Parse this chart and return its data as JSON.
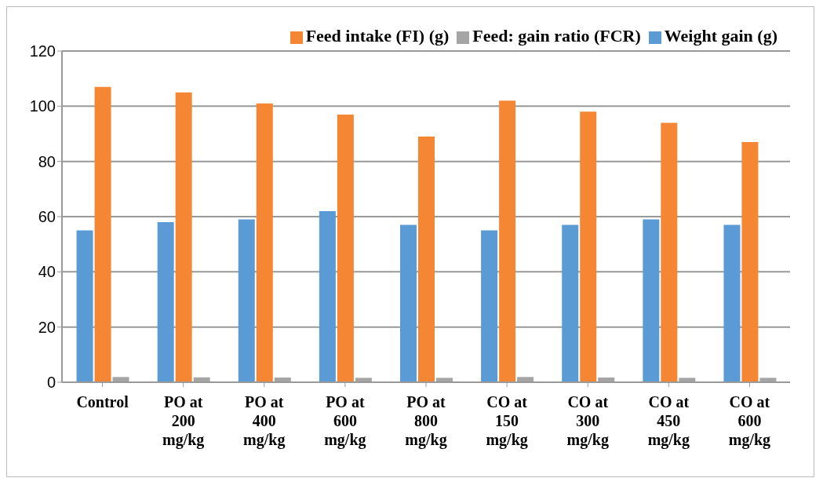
{
  "chart_data": {
    "type": "bar",
    "categories": [
      "Control",
      "PO at 200 mg/kg",
      "PO at 400 mg/kg",
      "PO at 600 mg/kg",
      "PO at 800 mg/kg",
      "CO at 150 mg/kg",
      "CO at 300 mg/kg",
      "CO at 450 mg/kg",
      "CO at 600 mg/kg"
    ],
    "series": [
      {
        "name": "Weight gain  (g)",
        "color": "#5b9bd5",
        "values": [
          55,
          58,
          59,
          62,
          57,
          55,
          57,
          59,
          57
        ]
      },
      {
        "name": "Feed intake (FI) (g)",
        "color": "#f58634",
        "values": [
          107,
          105,
          101,
          97,
          89,
          102,
          98,
          94,
          87
        ]
      },
      {
        "name": "Feed: gain ratio (FCR)",
        "color": "#a5a5a5",
        "values": [
          1.9,
          1.8,
          1.7,
          1.6,
          1.6,
          1.9,
          1.7,
          1.6,
          1.6
        ]
      }
    ],
    "ylim": [
      0,
      120
    ],
    "yticks": [
      0,
      20,
      40,
      60,
      80,
      100,
      120
    ],
    "grid": "y",
    "legend": "top right"
  }
}
